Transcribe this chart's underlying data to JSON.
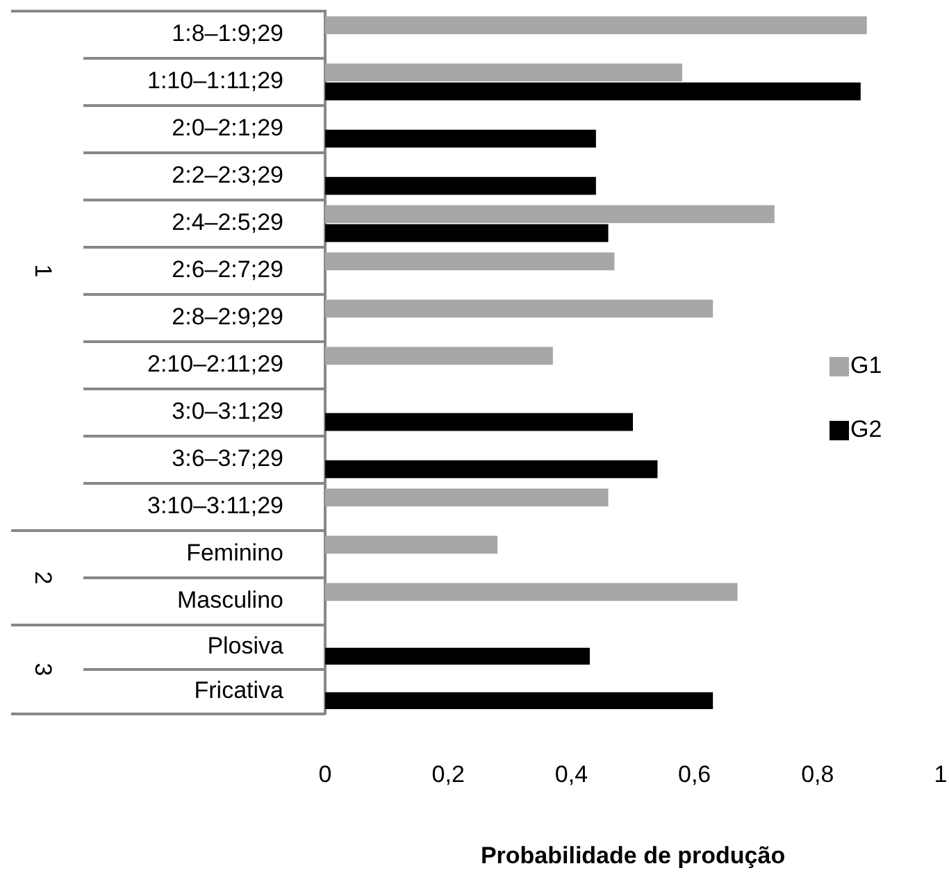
{
  "chart_data": [
    {
      "type": "bar",
      "orientation": "horizontal",
      "ylabel": "1",
      "categories": [
        "1:8–1:9;29",
        "1:10–1:11;29",
        "2:0–2:1;29",
        "2:2–2:3;29",
        "2:4–2:5;29",
        "2:6–2:7;29",
        "2:8–2:9;29",
        "2:10–2:11;29",
        "3:0–3:1;29",
        "3:6–3:7;29",
        "3:10–3:11;29"
      ],
      "series": [
        {
          "name": "G1",
          "color": "#a6a6a6",
          "values": [
            0.88,
            0.58,
            null,
            null,
            0.73,
            0.47,
            0.63,
            0.37,
            null,
            null,
            0.46
          ]
        },
        {
          "name": "G2",
          "color": "#000000",
          "values": [
            null,
            0.87,
            0.44,
            0.44,
            0.46,
            null,
            null,
            null,
            0.5,
            0.54,
            null
          ]
        }
      ],
      "xlim": [
        0,
        1
      ],
      "tick_labels": "y",
      "grid": false,
      "legend": "right"
    },
    {
      "type": "bar",
      "orientation": "horizontal",
      "ylabel": "2",
      "categories": [
        "Feminino",
        "Masculino"
      ],
      "series": [
        {
          "color": "#a6a6a6",
          "values": [
            0.28,
            0.67
          ]
        },
        {
          "color": "#000000",
          "values": [
            null,
            null
          ]
        }
      ],
      "xlim": [
        0,
        1
      ],
      "tick_labels": "y",
      "grid": false
    },
    {
      "type": "bar",
      "orientation": "horizontal",
      "ylabel": "3",
      "xlabel": "Probabilidade de produção",
      "categories": [
        "Plosiva",
        "Fricativa"
      ],
      "series": [
        {
          "color": "#a6a6a6",
          "values": [
            null,
            null
          ]
        },
        {
          "color": "#000000",
          "values": [
            0.43,
            0.63
          ]
        }
      ],
      "xlim": [
        0,
        1
      ],
      "xticks": [
        0,
        {
          "value": 0.2,
          "label": "0,2"
        },
        {
          "value": 0.4,
          "label": "0,4"
        },
        {
          "value": 0.6,
          "label": "0,6"
        },
        {
          "value": 0.8,
          "label": "0,8"
        },
        1
      ],
      "grid": false
    }
  ]
}
